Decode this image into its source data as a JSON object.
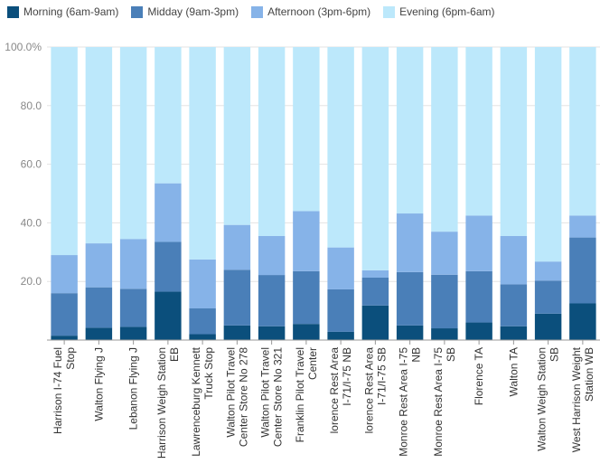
{
  "chart_data": {
    "type": "bar",
    "stacked": true,
    "categories": [
      "Harrison I-74 Fuel Stop",
      "Walton Flying J",
      "Lebanon Flying J",
      "Harrison Weigh Station EB",
      "Lawrenceburg Kennett Truck Stop",
      "Walton Pilot Travel Center Store No 278",
      "Walton Pilot Travel Center Store No 321",
      "Franklin Pilot Travel Center",
      "lorence Rest Area I-71/I-75 NB",
      "lorence Rest Area I-71/I-75 SB",
      "Monroe Rest Area I-75 NB",
      "Monroe Rest Area I-75 SB",
      "Florence TA",
      "Walton TA",
      "Walton Weigh Station SB",
      "West Harrison Weight Station WB"
    ],
    "series": [
      {
        "name": "Morning (6am-9am)",
        "color": "#0b4f7c",
        "values": [
          1.5,
          4.2,
          4.5,
          16.5,
          2.0,
          5.0,
          4.7,
          5.5,
          2.8,
          11.8,
          5.0,
          4.0,
          6.0,
          4.7,
          9.0,
          12.5
        ]
      },
      {
        "name": "Midday (9am-3pm)",
        "color": "#4a7fb8",
        "values": [
          14.5,
          13.8,
          13.0,
          17.0,
          8.8,
          19.0,
          17.5,
          18.0,
          14.5,
          9.5,
          18.2,
          18.3,
          17.5,
          14.3,
          11.3,
          22.5
        ]
      },
      {
        "name": "Afternoon (3pm-6pm)",
        "color": "#86b3e8",
        "values": [
          13.0,
          15.0,
          17.0,
          20.0,
          16.7,
          15.3,
          13.3,
          20.5,
          14.3,
          2.5,
          20.0,
          14.7,
          19.0,
          16.5,
          6.5,
          7.5
        ]
      },
      {
        "name": "Evening (6pm-6am)",
        "color": "#bce8fb",
        "values": [
          71.0,
          67.0,
          65.5,
          46.5,
          72.5,
          60.7,
          64.5,
          56.0,
          68.4,
          76.2,
          56.8,
          63.0,
          57.5,
          64.5,
          73.2,
          57.5
        ]
      }
    ],
    "y_ticks": [
      "100.0%",
      "80.0",
      "60.0",
      "40.0",
      "20.0"
    ],
    "ylim": [
      0,
      100
    ],
    "grid": true,
    "legend_position": "top-left"
  }
}
